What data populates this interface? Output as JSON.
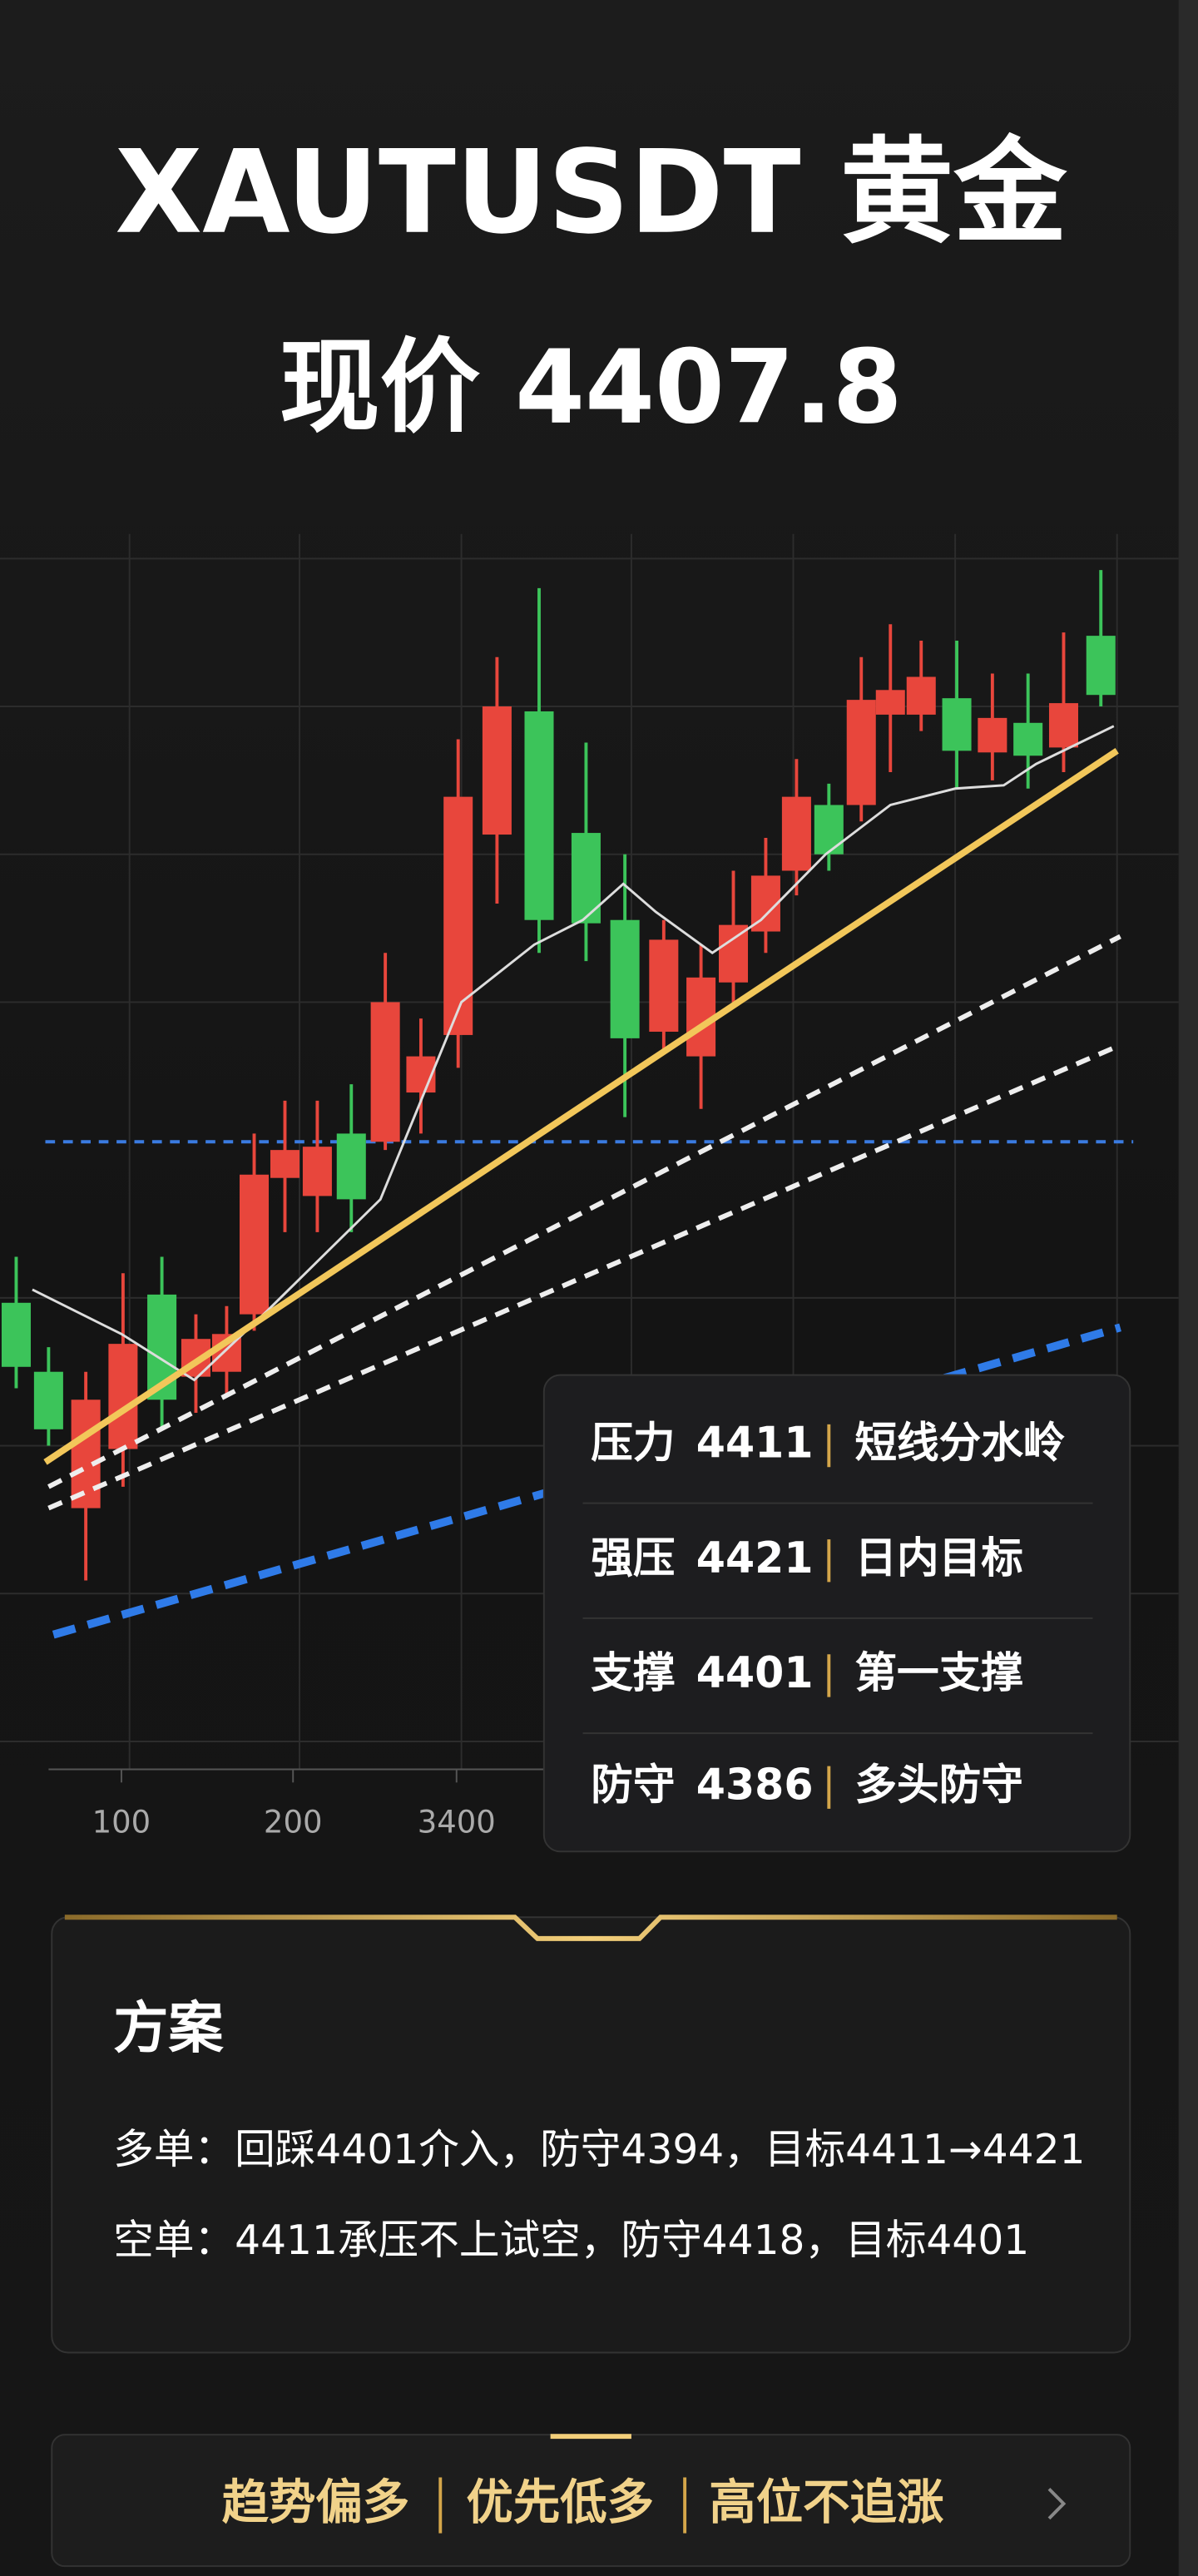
{
  "header": {
    "title": "XAUTUSDT 黄金",
    "price": "现价 4407.8"
  },
  "chart": {
    "x_tick_labels": [
      "100",
      "200",
      "3400"
    ]
  },
  "levels": [
    {
      "label": "压力",
      "value": 4411,
      "note": "短线分水岭"
    },
    {
      "label": "强压",
      "value": 4421,
      "note": "日内目标"
    },
    {
      "label": "支撑",
      "value": 4401,
      "note": "第一支撑"
    },
    {
      "label": "防守",
      "value": 4386,
      "note": "多头防守"
    }
  ],
  "plan": {
    "title": "方案",
    "lines": [
      "多单：回踩4401介入，防守4394，目标4411→4421",
      "空单：4411承压不上试空，防守4418，目标4401"
    ]
  },
  "footer": {
    "tags": [
      "趋势偏多",
      "优先低多",
      "高位不追涨"
    ]
  }
}
